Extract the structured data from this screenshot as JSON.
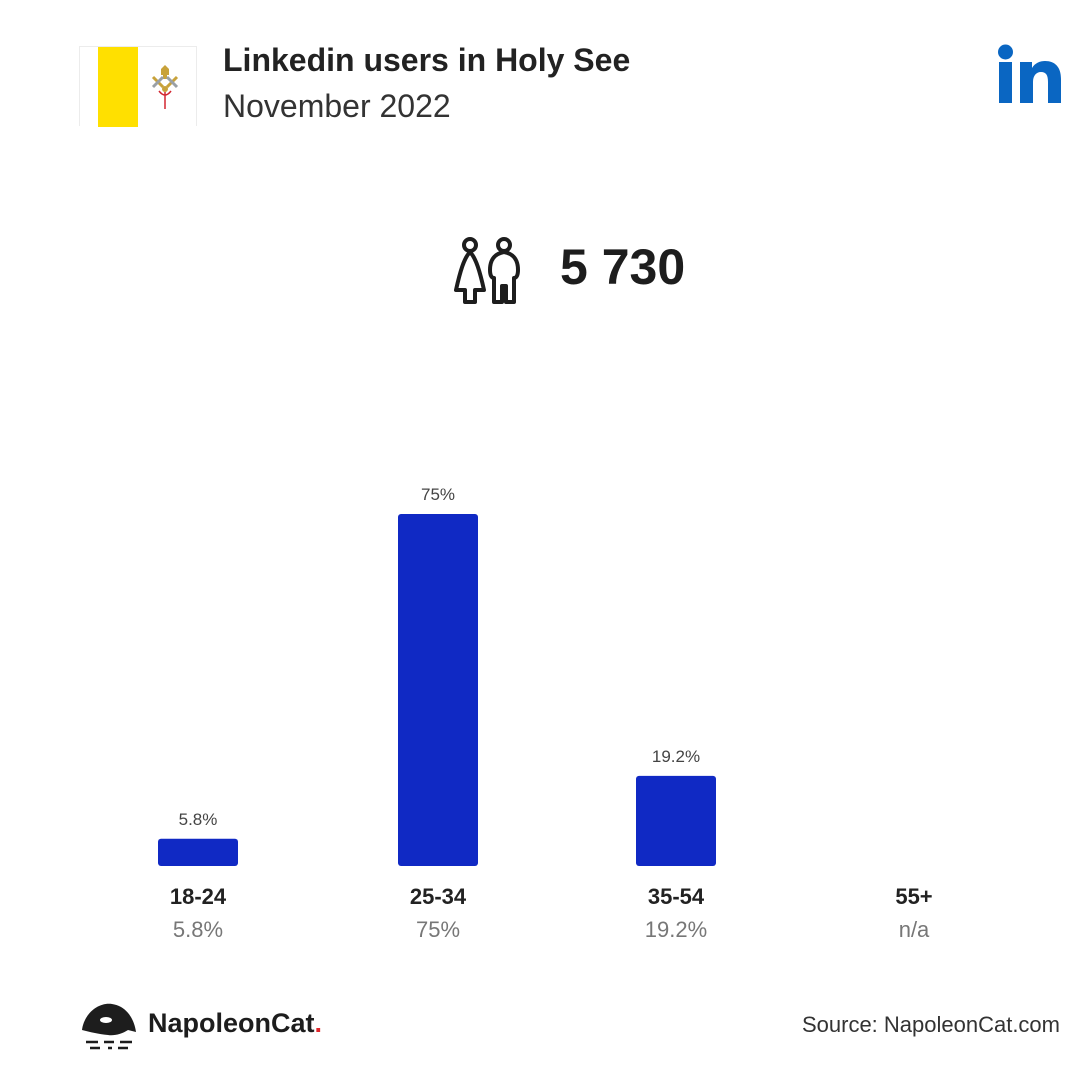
{
  "header": {
    "title": "Linkedin users in Holy See",
    "subtitle": "November 2022",
    "flag_colors": {
      "hoist": "#ffe000",
      "fly": "#ffffff",
      "emblem": "#c8a23a",
      "cord": "#d22630"
    },
    "brand_icon": "linkedin-icon",
    "brand_color": "#0a66c2"
  },
  "total": {
    "icon": "users-icon",
    "value": "5 730"
  },
  "chart_data": {
    "type": "bar",
    "categories": [
      "18-24",
      "25-34",
      "35-54",
      "55+"
    ],
    "values": [
      5.8,
      75,
      19.2,
      null
    ],
    "bar_labels": [
      "5.8%",
      "75%",
      "19.2%",
      ""
    ],
    "value_labels": [
      "5.8%",
      "75%",
      "19.2%",
      "n/a"
    ],
    "ylim": [
      0,
      75
    ],
    "grid": false,
    "bar_color": "#1029c4"
  },
  "footer": {
    "brand_name": "NapoleonCat",
    "brand_dot": ".",
    "source": "Source: NapoleonCat.com"
  }
}
